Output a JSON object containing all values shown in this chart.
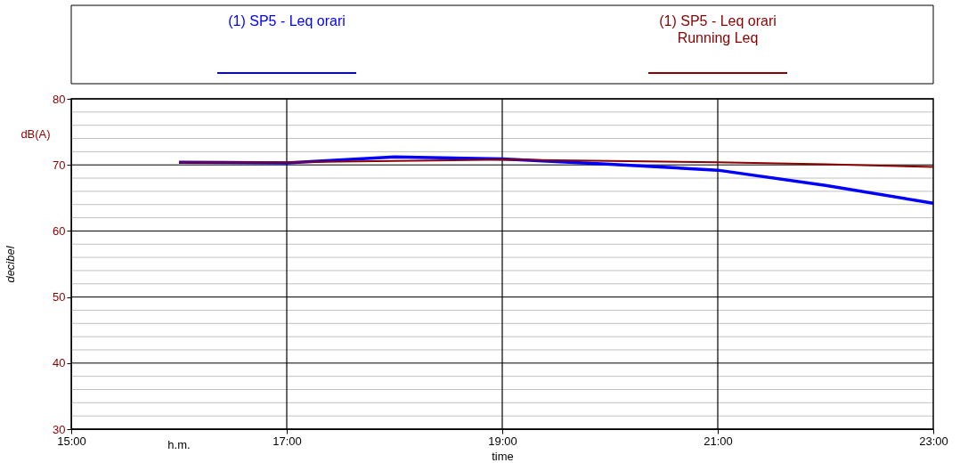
{
  "chart_data": {
    "type": "line",
    "xlabel": "time",
    "ylabel": "decibel",
    "annotations": [
      "h.m.",
      "dB(A)"
    ],
    "x": [
      16,
      17,
      18,
      19,
      20,
      21,
      22,
      23
    ],
    "series": [
      {
        "name": "(1) SP5 - Leq orari",
        "color": "#0000ff",
        "values": [
          70.4,
          70.3,
          71.2,
          70.9,
          70.1,
          69.2,
          66.9,
          64.2
        ]
      },
      {
        "name": "(1) SP5 - Leq orari\nRunning Leq",
        "color": "#8b0000",
        "values": [
          70.4,
          70.4,
          70.6,
          70.8,
          70.6,
          70.4,
          70.1,
          69.7
        ]
      }
    ],
    "xlim": [
      15,
      23
    ],
    "xticks": [
      {
        "value": 15,
        "label": "15:00"
      },
      {
        "value": 17,
        "label": "17:00"
      },
      {
        "value": 19,
        "label": "19:00"
      },
      {
        "value": 21,
        "label": "21:00"
      },
      {
        "value": 23,
        "label": "23:00"
      }
    ],
    "ylim": [
      30,
      80
    ],
    "yticks": [
      30,
      {
        "value": 32,
        "label": null
      },
      {
        "value": 34,
        "label": null
      },
      {
        "value": 36,
        "label": null
      },
      {
        "value": 38,
        "label": null
      },
      40,
      {
        "value": 42,
        "label": null
      },
      {
        "value": 44,
        "label": null
      },
      {
        "value": 46,
        "label": null
      },
      {
        "value": 48,
        "label": null
      },
      50,
      {
        "value": 52,
        "label": null
      },
      {
        "value": 54,
        "label": null
      },
      {
        "value": 56,
        "label": null
      },
      {
        "value": 58,
        "label": null
      },
      60,
      {
        "value": 62,
        "label": null
      },
      {
        "value": 64,
        "label": null
      },
      {
        "value": 66,
        "label": null
      },
      {
        "value": 68,
        "label": null
      },
      70,
      {
        "value": 72,
        "label": null
      },
      {
        "value": 74,
        "label": null
      },
      {
        "value": 76,
        "label": null
      },
      {
        "value": 78,
        "label": null
      },
      80
    ],
    "grid": true,
    "legend": "top",
    "line_style": "solid",
    "marker": "none"
  }
}
